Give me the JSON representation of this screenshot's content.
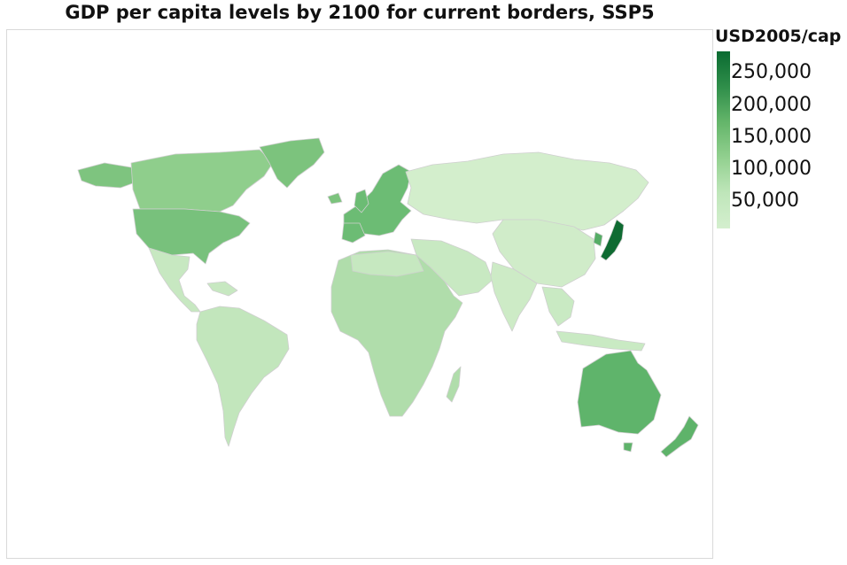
{
  "title": "GDP per capita levels by 2100 for current borders, SSP5",
  "legend": {
    "title": "USD2005/cap",
    "ticks": [
      "250,000",
      "200,000",
      "150,000",
      "100,000",
      "50,000"
    ],
    "min_color": "#d4efce",
    "max_color": "#0a6b31"
  },
  "map": {
    "projection": "equirectangular world map",
    "regions": [
      {
        "name": "north-america",
        "level": "high",
        "color": "#7ec47f"
      },
      {
        "name": "usa",
        "level": "high",
        "color": "#78c17c"
      },
      {
        "name": "canada",
        "level": "mid-high",
        "color": "#8fce8c"
      },
      {
        "name": "greenland",
        "level": "high",
        "color": "#7cc37d"
      },
      {
        "name": "latin-america",
        "level": "low",
        "color": "#c2e6bc"
      },
      {
        "name": "europe",
        "level": "high",
        "color": "#6cbc74"
      },
      {
        "name": "russia-asia",
        "level": "low",
        "color": "#d3eecc"
      },
      {
        "name": "africa",
        "level": "mid",
        "color": "#b0ddab"
      },
      {
        "name": "middle-east",
        "level": "low",
        "color": "#c8e9c2"
      },
      {
        "name": "japan",
        "level": "highest",
        "color": "#0f6b32"
      },
      {
        "name": "south-korea",
        "level": "high",
        "color": "#56ad66"
      },
      {
        "name": "australia",
        "level": "high",
        "color": "#5fb46b"
      },
      {
        "name": "new-zealand",
        "level": "high",
        "color": "#5eb36a"
      },
      {
        "name": "southeast-asia",
        "level": "low",
        "color": "#c9eac3"
      }
    ]
  }
}
